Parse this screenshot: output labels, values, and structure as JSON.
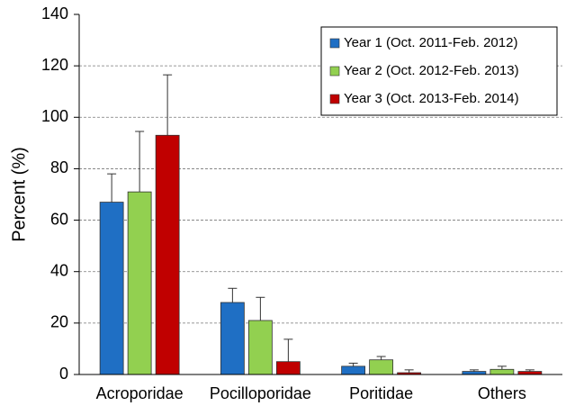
{
  "chart_data": {
    "type": "bar",
    "y_label": "Percent (%)",
    "categories": [
      "Acroporidae",
      "Pocilloporidae",
      "Poritidae",
      "Others"
    ],
    "series": [
      {
        "name": "Year 1 (Oct. 2011-Feb. 2012)",
        "color": "#1f6fc4",
        "values": [
          67,
          28,
          3.2,
          1.2
        ],
        "errors": [
          11,
          5.5,
          1.2,
          0.6
        ]
      },
      {
        "name": "Year 2 (Oct. 2012-Feb. 2013)",
        "color": "#92d050",
        "values": [
          71,
          21,
          5.7,
          2
        ],
        "errors": [
          23.5,
          9,
          1.3,
          1.2
        ]
      },
      {
        "name": "Year 3 (Oct. 2013-Feb. 2014)",
        "color": "#c00000",
        "values": [
          93,
          5,
          0.7,
          1.2
        ],
        "errors": [
          23.5,
          8.7,
          1.1,
          0.6
        ]
      }
    ],
    "ylim": [
      0,
      140
    ],
    "yticks": [
      0,
      20,
      40,
      60,
      80,
      100,
      120,
      140
    ],
    "grid": true,
    "legend": "upper right"
  }
}
